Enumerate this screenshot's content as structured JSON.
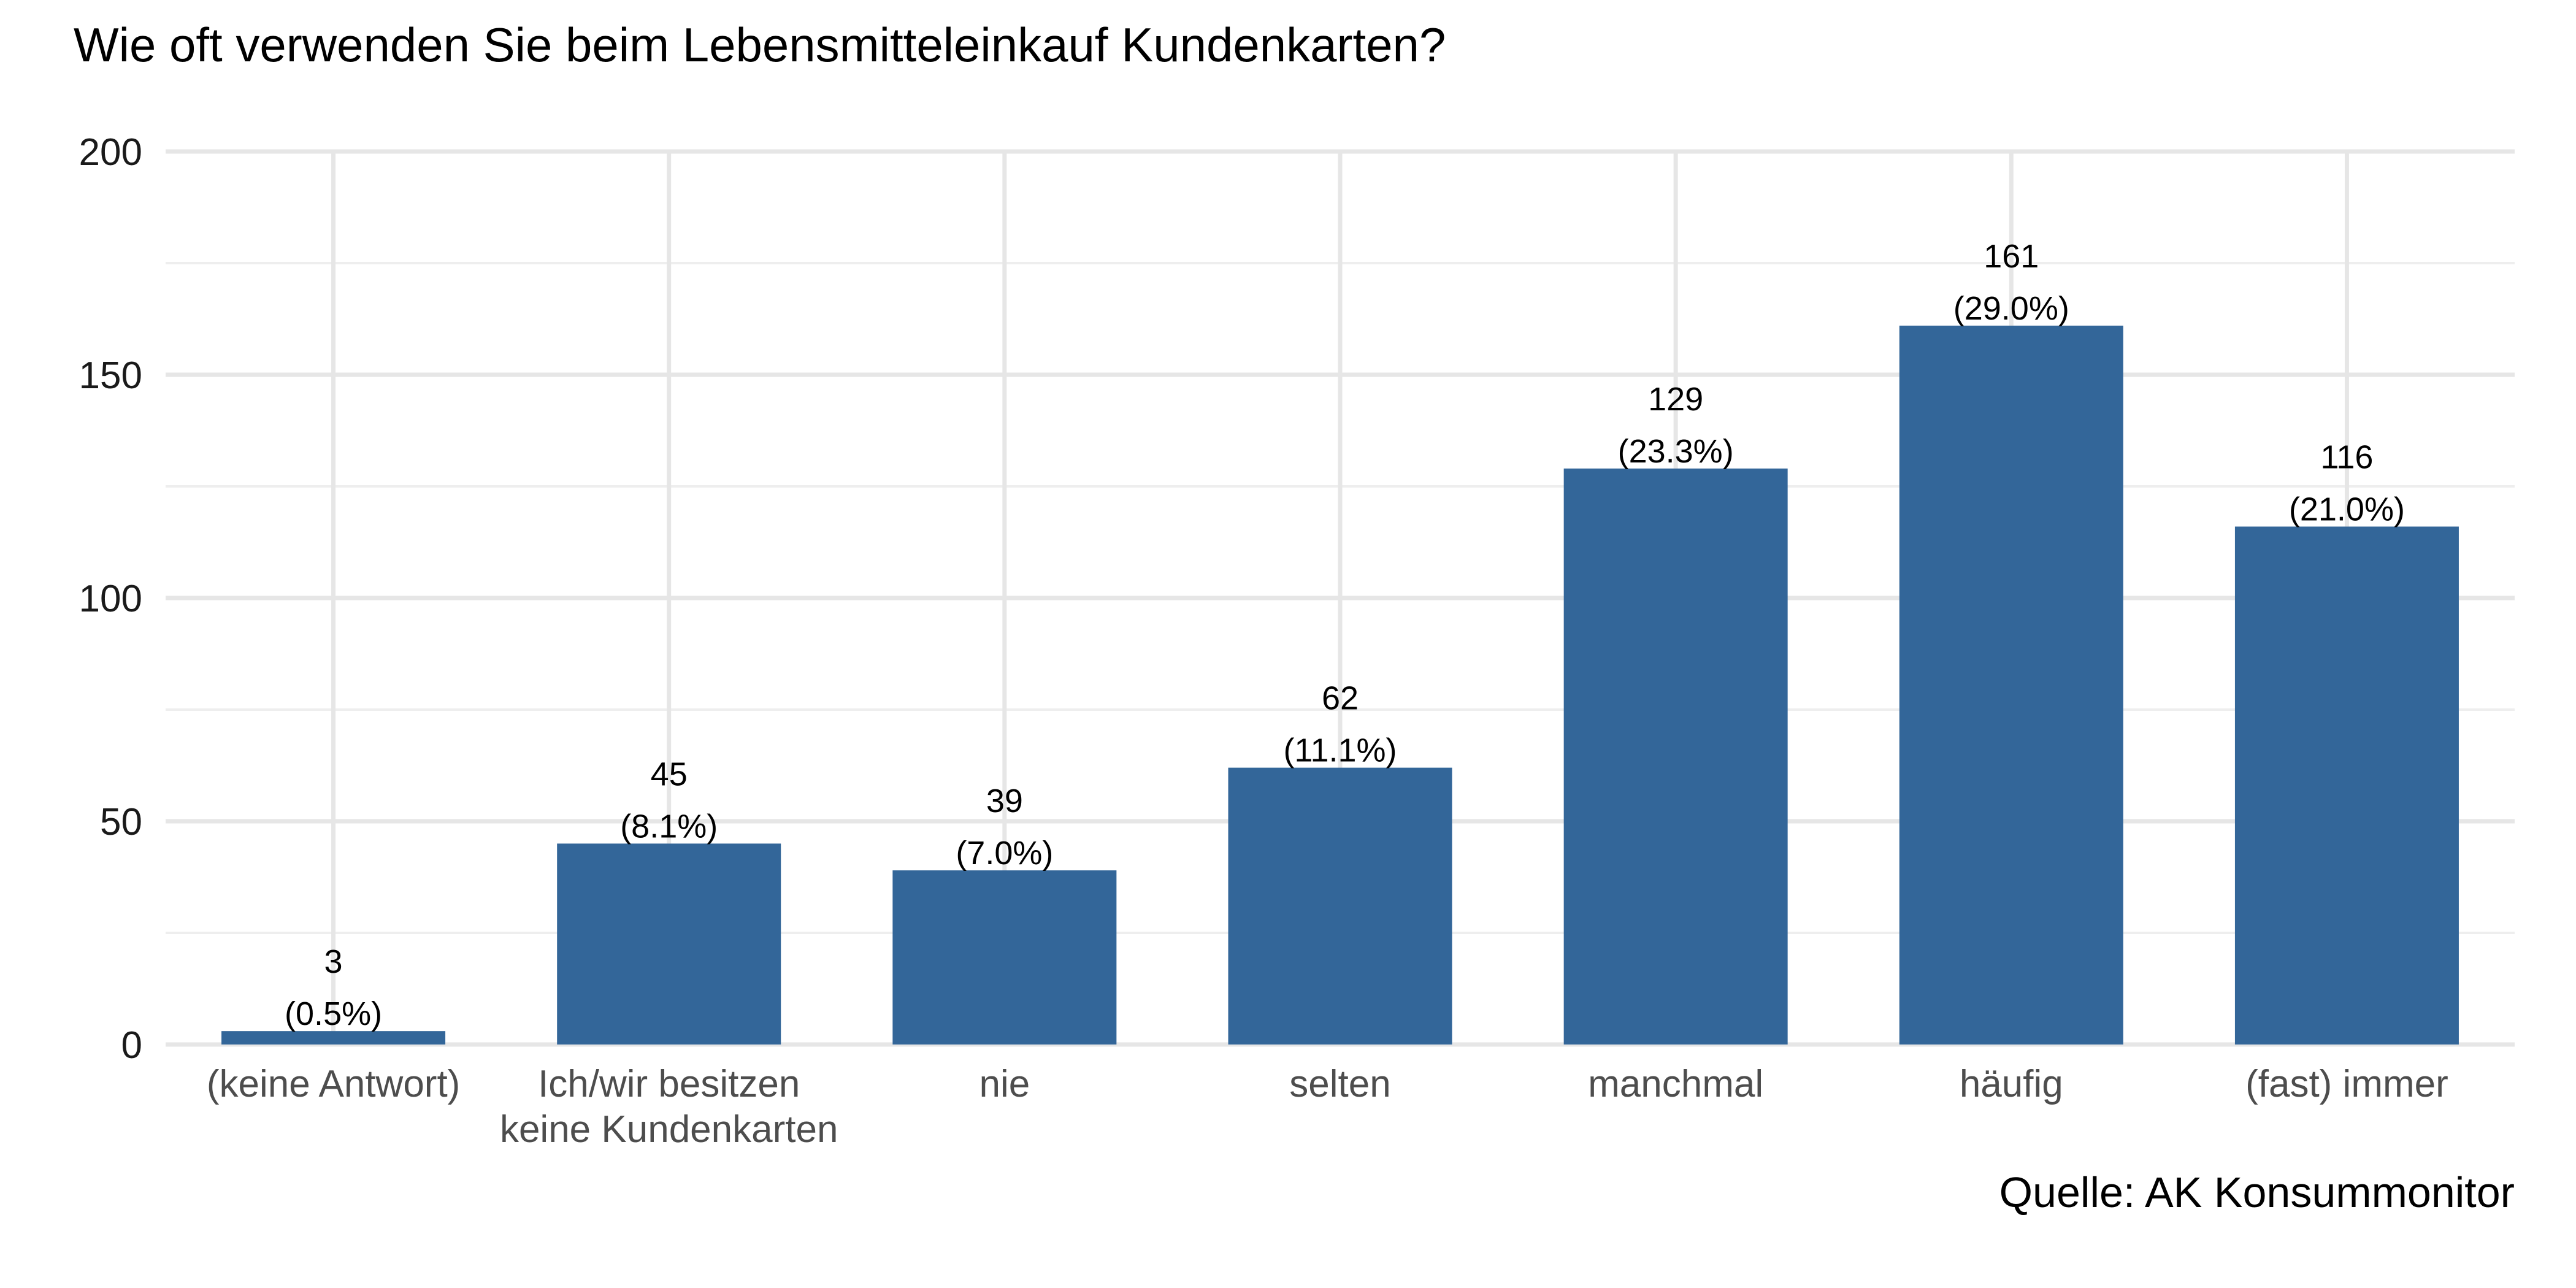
{
  "colors": {
    "bar": "#336699",
    "grid": "#e6e6e6",
    "text": "#000000"
  },
  "chart_data": {
    "type": "bar",
    "title": "Wie oft verwenden Sie beim Lebensmitteleinkauf Kundenkarten?",
    "xlabel": "",
    "ylabel": "",
    "ylim": [
      0,
      200
    ],
    "yticks": [
      "0",
      "50",
      "100",
      "150",
      "200"
    ],
    "grid": true,
    "categories": [
      [
        "(keine Antwort)"
      ],
      [
        "Ich/wir besitzen",
        "keine Kundenkarten"
      ],
      [
        "nie"
      ],
      [
        "selten"
      ],
      [
        "manchmal"
      ],
      [
        "häufig"
      ],
      [
        "(fast) immer"
      ]
    ],
    "values": [
      3,
      45,
      39,
      62,
      129,
      161,
      116
    ],
    "count_labels": [
      "3",
      "45",
      "39",
      "62",
      "129",
      "161",
      "116"
    ],
    "percent_labels": [
      "(0.5%)",
      "(8.1%)",
      "(7.0%)",
      "(11.1%)",
      "(23.3%)",
      "(29.0%)",
      "(21.0%)"
    ],
    "caption": "Quelle: AK Konsummonitor"
  }
}
